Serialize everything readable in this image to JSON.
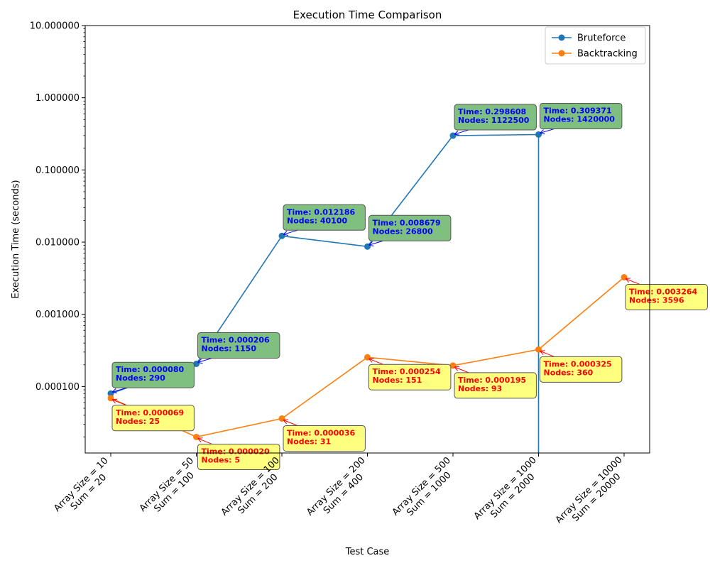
{
  "chart_data": {
    "type": "line",
    "title": "Execution Time Comparison",
    "xlabel": "Test Case",
    "ylabel": "Execution Time (seconds)",
    "yscale": "log",
    "ylim": [
      1.2e-05,
      10
    ],
    "yticks": [
      0.0001,
      0.001,
      0.01,
      0.1,
      1,
      10
    ],
    "ytick_labels": [
      "0.000100",
      "0.001000",
      "0.010000",
      "0.100000",
      "1.000000",
      "10.000000"
    ],
    "categories": [
      [
        "Array Size = 10",
        "Sum = 20"
      ],
      [
        "Array Size = 50",
        "Sum = 100"
      ],
      [
        "Array Size = 100",
        "Sum = 200"
      ],
      [
        "Array Size = 200",
        "Sum = 400"
      ],
      [
        "Array Size = 500",
        "Sum = 1000"
      ],
      [
        "Array Size = 1000",
        "Sum = 2000"
      ],
      [
        "Array Size = 10000",
        "Sum = 20000"
      ]
    ],
    "legend_position": "top-right",
    "series": [
      {
        "name": "Bruteforce",
        "color": "#1f77b4",
        "annotation_fill": "#7fbf7f",
        "annotation_text_color": "#0000ff",
        "annotation_arrow_color": "#0000ff",
        "values": [
          8e-05,
          0.000206,
          0.012186,
          0.008679,
          0.298608,
          0.309371,
          null
        ],
        "drop_to_axis_after_last": true,
        "annotations": [
          [
            "Time: 0.000080",
            "Nodes: 290"
          ],
          [
            "Time: 0.000206",
            "Nodes: 1150"
          ],
          [
            "Time: 0.012186",
            "Nodes: 40100"
          ],
          [
            "Time: 0.008679",
            "Nodes: 26800"
          ],
          [
            "Time: 0.298608",
            "Nodes: 1122500"
          ],
          [
            "Time: 0.309371",
            "Nodes: 1420000"
          ],
          null
        ]
      },
      {
        "name": "Backtracking",
        "color": "#ff7f0e",
        "annotation_fill": "#ffff7f",
        "annotation_text_color": "#ff0000",
        "annotation_arrow_color": "#ff0000",
        "values": [
          6.9e-05,
          2e-05,
          3.6e-05,
          0.000254,
          0.000195,
          0.000325,
          0.003264
        ],
        "drop_to_axis_after_last": false,
        "annotations": [
          [
            "Time: 0.000069",
            "Nodes: 25"
          ],
          [
            "Time: 0.000020",
            "Nodes: 5"
          ],
          [
            "Time: 0.000036",
            "Nodes: 31"
          ],
          [
            "Time: 0.000254",
            "Nodes: 151"
          ],
          [
            "Time: 0.000195",
            "Nodes: 93"
          ],
          [
            "Time: 0.000325",
            "Nodes: 360"
          ],
          [
            "Time: 0.003264",
            "Nodes: 3596"
          ]
        ]
      }
    ]
  }
}
